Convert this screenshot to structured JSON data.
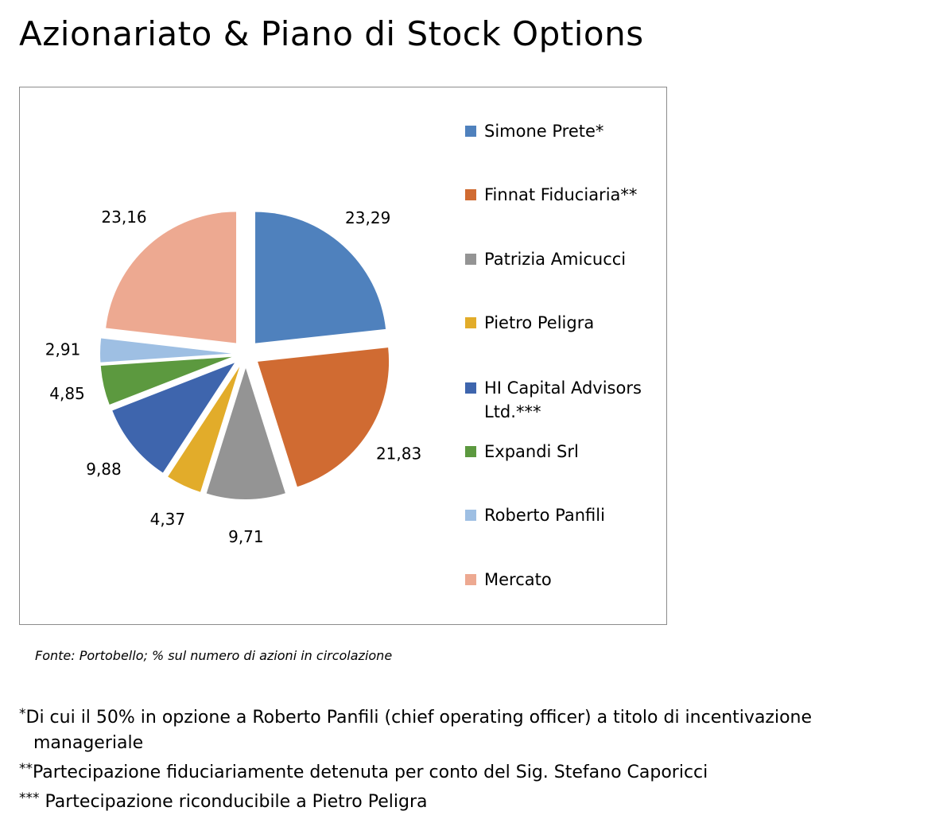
{
  "title": "Azionariato & Piano di Stock Options",
  "chart_data": {
    "type": "pie",
    "exploded": true,
    "slices": [
      {
        "label": "Simone Prete*",
        "value": 23.29,
        "value_label": "23,29",
        "color": "#4f81bd"
      },
      {
        "label": "Finnat Fiduciaria**",
        "value": 21.83,
        "value_label": "21,83",
        "color": "#d06b32"
      },
      {
        "label": "Patrizia Amicucci",
        "value": 9.71,
        "value_label": "9,71",
        "color": "#949494"
      },
      {
        "label": "Pietro Peligra",
        "value": 4.37,
        "value_label": "4,37",
        "color": "#e2ac2a"
      },
      {
        "label": "HI Capital Advisors Ltd.***",
        "value": 9.88,
        "value_label": "9,88",
        "color": "#3e65ad"
      },
      {
        "label": "Expandi Srl",
        "value": 4.85,
        "value_label": "4,85",
        "color": "#5c993f"
      },
      {
        "label": "Roberto Panfili",
        "value": 2.91,
        "value_label": "2,91",
        "color": "#9ebfe3"
      },
      {
        "label": "Mercato",
        "value": 23.16,
        "value_label": "23,16",
        "color": "#eda991"
      }
    ],
    "legend_position": "right"
  },
  "source": "Fonte: Portobello;  % sul numero di azioni in circolazione",
  "notes": [
    {
      "mark": "*",
      "text": "Di cui il 50% in opzione a Roberto Panfili (chief operating officer) a titolo di incentivazione",
      "continuation": "manageriale"
    },
    {
      "mark": "**",
      "text": "Partecipazione fiduciariamente detenuta per conto del Sig. Stefano Caporicci",
      "continuation": ""
    },
    {
      "mark": "***",
      "text": " Partecipazione riconducibile a Pietro Peligra",
      "continuation": ""
    }
  ]
}
